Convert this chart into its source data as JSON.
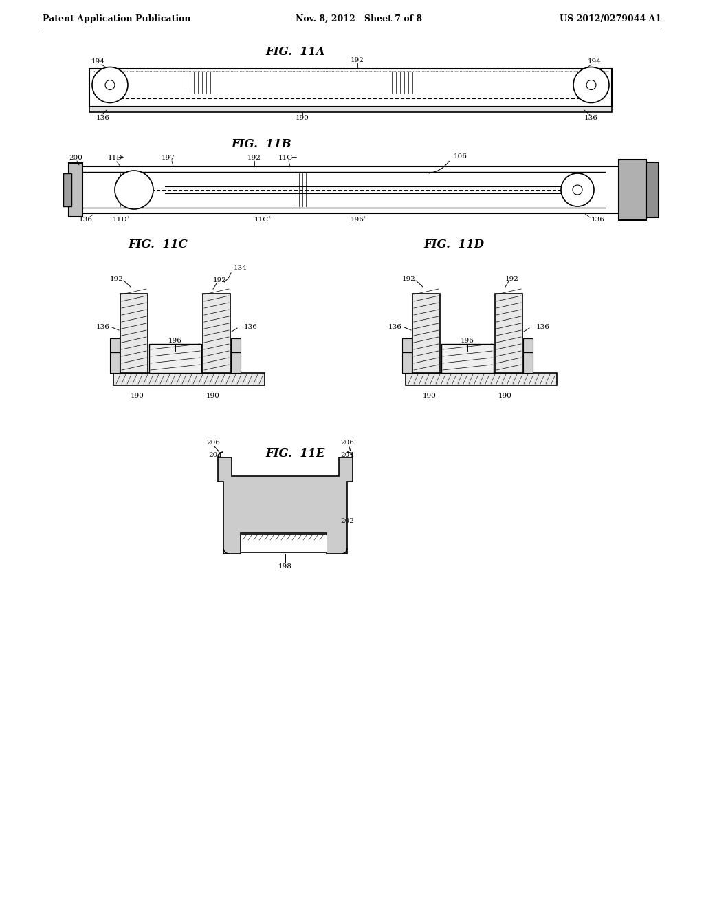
{
  "background_color": "#ffffff",
  "header_left": "Patent Application Publication",
  "header_mid": "Nov. 8, 2012   Sheet 7 of 8",
  "header_right": "US 2012/0279044 A1",
  "fig11a_title": "FIG.  11A",
  "fig11b_title": "FIG.  11B",
  "fig11c_title": "FIG.  11C",
  "fig11d_title": "FIG.  11D",
  "fig11e_title": "FIG.  11E",
  "line_color": "#000000",
  "text_color": "#000000",
  "font_size_header": 9,
  "font_size_label": 7.5,
  "font_size_fig": 12
}
